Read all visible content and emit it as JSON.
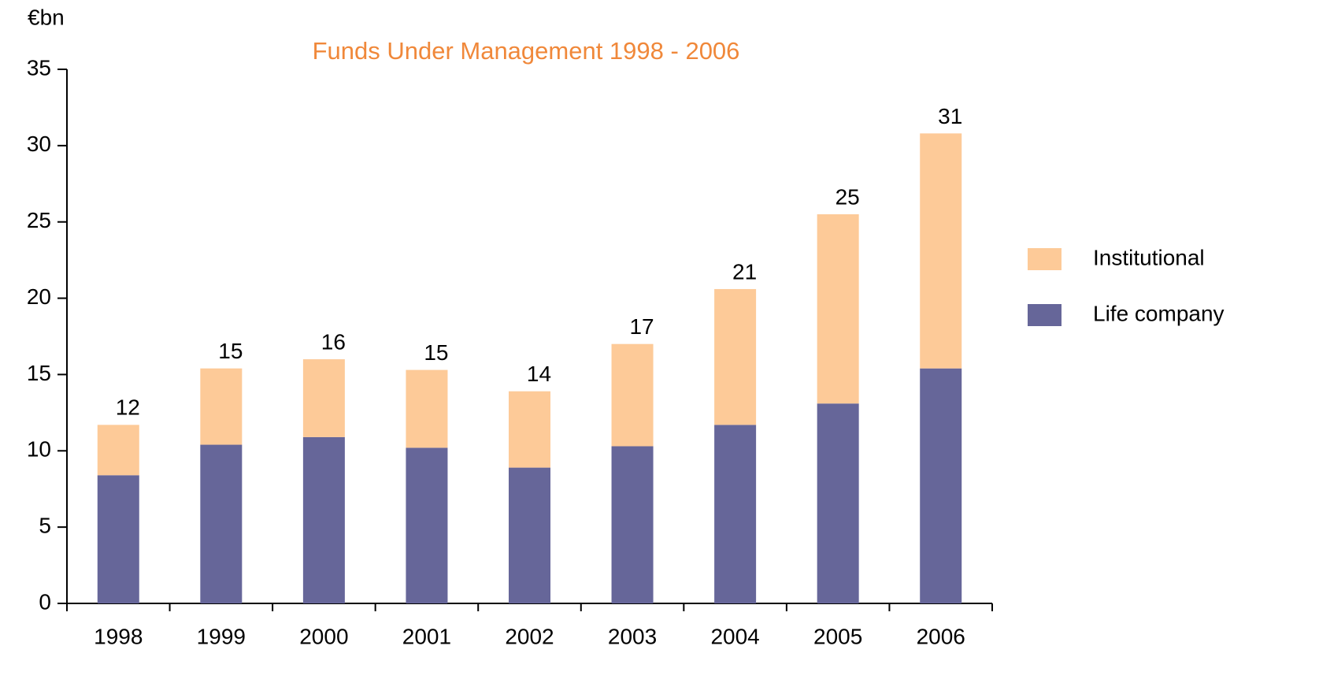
{
  "chart_data": {
    "type": "stacked_bar",
    "title": "Funds Under Management 1998 - 2006",
    "y_unit": "€bn",
    "categories": [
      "1998",
      "1999",
      "2000",
      "2001",
      "2002",
      "2003",
      "2004",
      "2005",
      "2006"
    ],
    "series": [
      {
        "name": "Institutional",
        "color": "#fdca98",
        "values": [
          3.3,
          5.0,
          5.1,
          5.1,
          5.0,
          6.7,
          8.9,
          12.4,
          15.4
        ]
      },
      {
        "name": "Life company",
        "color": "#666699",
        "values": [
          8.4,
          10.4,
          10.9,
          10.2,
          8.9,
          10.3,
          11.7,
          13.1,
          15.4
        ]
      }
    ],
    "total_labels": [
      "12",
      "15",
      "16",
      "15",
      "14",
      "17",
      "21",
      "25",
      "31"
    ],
    "ylim": [
      0,
      35
    ],
    "yticks": [
      0,
      5,
      10,
      15,
      20,
      25,
      30,
      35
    ],
    "legend": "right",
    "grid": false
  }
}
